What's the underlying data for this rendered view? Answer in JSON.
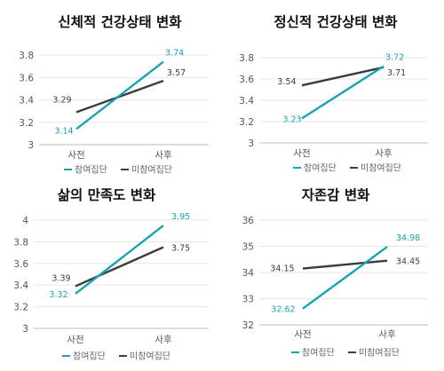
{
  "colors": {
    "participant": "#17a3b2",
    "non_participant": "#3c3c3c",
    "axis": "#bbbbbb",
    "grid": "#e6e6e6",
    "tick_text": "#555555"
  },
  "legend": {
    "participant": "참여집단",
    "non_participant": "미참여집단"
  },
  "chart_data": [
    {
      "type": "line",
      "title": "신체적 건강상태 변화",
      "categories": [
        "사전",
        "사후"
      ],
      "ylim": [
        3,
        3.8
      ],
      "yticks": [
        "3",
        "3.2",
        "3.4",
        "3.6",
        "3.8"
      ],
      "grid": true,
      "legend_position": "bottom",
      "series": [
        {
          "name": "참여집단",
          "values": [
            3.14,
            3.74
          ],
          "labels": [
            "3.14",
            "3.74"
          ]
        },
        {
          "name": "미참여집단",
          "values": [
            3.29,
            3.57
          ],
          "labels": [
            "3.29",
            "3.57"
          ]
        }
      ]
    },
    {
      "type": "line",
      "title": "정신적 건강상태 변화",
      "categories": [
        "사전",
        "사후"
      ],
      "ylim": [
        3,
        3.8
      ],
      "yticks": [
        "3",
        "3.2",
        "3.4",
        "3.6",
        "3.8"
      ],
      "grid": true,
      "legend_position": "bottom",
      "series": [
        {
          "name": "참여집단",
          "values": [
            3.23,
            3.72
          ],
          "labels": [
            "3.23",
            "3.72"
          ]
        },
        {
          "name": "미참여집단",
          "values": [
            3.54,
            3.71
          ],
          "labels": [
            "3.54",
            "3.71"
          ]
        }
      ]
    },
    {
      "type": "line",
      "title": "삶의 만족도 변화",
      "categories": [
        "사전",
        "사후"
      ],
      "ylim": [
        3,
        4
      ],
      "yticks": [
        "3",
        "3.2",
        "3.4",
        "3.6",
        "3.8",
        "4"
      ],
      "grid": true,
      "legend_position": "bottom",
      "series": [
        {
          "name": "참여집단",
          "values": [
            3.32,
            3.95
          ],
          "labels": [
            "3.32",
            "3.95"
          ]
        },
        {
          "name": "미참여집단",
          "values": [
            3.39,
            3.75
          ],
          "labels": [
            "3.39",
            "3.75"
          ]
        }
      ]
    },
    {
      "type": "line",
      "title": "자존감 변화",
      "categories": [
        "사전",
        "사후"
      ],
      "ylim": [
        32,
        36
      ],
      "yticks": [
        "32",
        "33",
        "34",
        "35",
        "36"
      ],
      "grid": true,
      "legend_position": "bottom",
      "series": [
        {
          "name": "참여집단",
          "values": [
            32.62,
            34.98
          ],
          "labels": [
            "32.62",
            "34.98"
          ]
        },
        {
          "name": "미참여집단",
          "values": [
            34.15,
            34.45
          ],
          "labels": [
            "34.15",
            "34.45"
          ]
        }
      ]
    }
  ]
}
